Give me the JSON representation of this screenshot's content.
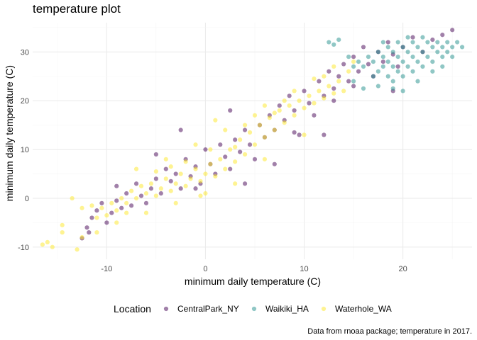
{
  "chart_data": {
    "type": "scatter",
    "title": "temperature plot",
    "xlabel": "minimum daily temperature (C)",
    "ylabel": "minimum daily temperature (C)",
    "caption": "Data from rnoaa package; temperature in 2017.",
    "xlim": [
      -17.5,
      27
    ],
    "ylim": [
      -12.5,
      36
    ],
    "x_ticks": [
      -10,
      0,
      10,
      20
    ],
    "y_ticks": [
      -10,
      0,
      10,
      20,
      30
    ],
    "grid": true,
    "legend": {
      "title": "Location",
      "placement": "bottom",
      "entries": [
        "CentralPark_NY",
        "Waikiki_HA",
        "Waterhole_WA"
      ]
    },
    "point_opacity": 0.5,
    "series": [
      {
        "name": "CentralPark_NY",
        "color": "#440154",
        "points": [
          [
            -12.5,
            -8.2
          ],
          [
            -12,
            -6
          ],
          [
            -11.8,
            -7
          ],
          [
            -11.5,
            -4
          ],
          [
            -11,
            -2.5
          ],
          [
            -10.5,
            -1
          ],
          [
            -10,
            -5
          ],
          [
            -9.5,
            -3
          ],
          [
            -9,
            -0.5
          ],
          [
            -8.5,
            -2
          ],
          [
            -8,
            1
          ],
          [
            -7.5,
            -1.5
          ],
          [
            -7,
            3
          ],
          [
            -6.5,
            0.5
          ],
          [
            -6,
            -1
          ],
          [
            -5.5,
            2
          ],
          [
            -5,
            4
          ],
          [
            -4.5,
            1
          ],
          [
            -4,
            6
          ],
          [
            -3.5,
            3.5
          ],
          [
            -3,
            5
          ],
          [
            -2.5,
            2
          ],
          [
            -2,
            8
          ],
          [
            -1.5,
            4.5
          ],
          [
            -1,
            6.5
          ],
          [
            -0.5,
            3
          ],
          [
            0,
            10
          ],
          [
            0.5,
            7
          ],
          [
            1,
            5
          ],
          [
            1.5,
            11
          ],
          [
            2,
            8.5
          ],
          [
            2.5,
            6
          ],
          [
            3,
            12
          ],
          [
            3.5,
            9.5
          ],
          [
            4,
            14
          ],
          [
            4.5,
            11
          ],
          [
            5,
            8
          ],
          [
            5.5,
            15
          ],
          [
            6,
            12.5
          ],
          [
            6.5,
            17
          ],
          [
            7,
            14
          ],
          [
            7.5,
            19
          ],
          [
            8,
            16
          ],
          [
            8.5,
            21
          ],
          [
            9,
            18
          ],
          [
            9.5,
            13
          ],
          [
            10,
            22
          ],
          [
            10.5,
            19.5
          ],
          [
            11,
            17
          ],
          [
            11.5,
            24
          ],
          [
            12,
            21
          ],
          [
            12.5,
            26
          ],
          [
            13,
            22.5
          ],
          [
            13.5,
            25
          ],
          [
            14,
            27.5
          ],
          [
            14.5,
            24
          ],
          [
            15,
            29
          ],
          [
            15.5,
            26
          ],
          [
            16,
            31
          ],
          [
            16.5,
            27.5
          ],
          [
            17,
            25
          ],
          [
            17.5,
            30
          ],
          [
            18,
            28
          ],
          [
            18.5,
            32
          ],
          [
            19,
            29.5
          ],
          [
            19.5,
            27
          ],
          [
            20,
            31
          ],
          [
            21,
            33
          ],
          [
            22,
            30
          ],
          [
            23,
            32.5
          ],
          [
            24,
            33.5
          ],
          [
            25,
            34.5
          ],
          [
            -2.5,
            14
          ],
          [
            -5,
            9
          ],
          [
            2.5,
            18
          ],
          [
            9,
            13.5
          ],
          [
            12,
            13
          ],
          [
            -9,
            2.5
          ],
          [
            4,
            3
          ],
          [
            -1,
            2
          ],
          [
            7,
            7
          ],
          [
            15,
            23
          ],
          [
            19,
            22
          ],
          [
            13,
            20
          ]
        ]
      },
      {
        "name": "Waikiki_HA",
        "color": "#21908c",
        "points": [
          [
            12.5,
            32
          ],
          [
            13,
            31.5
          ],
          [
            14.5,
            29
          ],
          [
            15,
            27
          ],
          [
            15.5,
            28
          ],
          [
            16,
            27
          ],
          [
            16.5,
            29
          ],
          [
            17,
            25
          ],
          [
            17,
            28
          ],
          [
            17.5,
            26
          ],
          [
            17.5,
            30
          ],
          [
            18,
            27
          ],
          [
            18,
            29
          ],
          [
            18.5,
            25
          ],
          [
            18.5,
            28
          ],
          [
            18.5,
            31
          ],
          [
            19,
            24
          ],
          [
            19,
            27
          ],
          [
            19,
            30
          ],
          [
            19.5,
            26
          ],
          [
            19.5,
            29
          ],
          [
            19.5,
            32
          ],
          [
            20,
            25
          ],
          [
            20,
            28
          ],
          [
            20,
            31
          ],
          [
            20.5,
            27
          ],
          [
            20.5,
            30
          ],
          [
            20.5,
            33
          ],
          [
            21,
            26
          ],
          [
            21,
            29
          ],
          [
            21,
            32
          ],
          [
            21.5,
            28
          ],
          [
            21.5,
            31
          ],
          [
            22,
            27
          ],
          [
            22,
            30
          ],
          [
            22,
            33
          ],
          [
            22.5,
            29
          ],
          [
            22.5,
            32
          ],
          [
            23,
            28
          ],
          [
            23,
            31
          ],
          [
            23.5,
            30
          ],
          [
            23.5,
            32
          ],
          [
            24,
            29
          ],
          [
            24,
            31
          ],
          [
            24.5,
            30
          ],
          [
            24.5,
            32
          ],
          [
            25,
            31
          ],
          [
            25,
            29
          ],
          [
            25.5,
            32
          ],
          [
            26,
            31
          ],
          [
            15,
            24
          ],
          [
            16,
            22.5
          ],
          [
            17.5,
            23
          ],
          [
            20,
            22
          ],
          [
            13.5,
            32.5
          ],
          [
            21.5,
            24
          ],
          [
            18,
            32
          ],
          [
            23,
            26
          ],
          [
            19,
            22.5
          ],
          [
            24,
            27
          ]
        ]
      },
      {
        "name": "Waterhole_WA",
        "color": "#fde725",
        "points": [
          [
            -16.5,
            -9.5
          ],
          [
            -16,
            -9
          ],
          [
            -15.5,
            -10
          ],
          [
            -14.5,
            -7
          ],
          [
            -14.5,
            -5.5
          ],
          [
            -13.5,
            0
          ],
          [
            -13,
            -10.5
          ],
          [
            -12.5,
            -2
          ],
          [
            -11.5,
            -1.5
          ],
          [
            -11,
            -4
          ],
          [
            -10.5,
            -2
          ],
          [
            -10,
            -3.5
          ],
          [
            -9.5,
            -1
          ],
          [
            -9,
            -2.5
          ],
          [
            -8.5,
            0
          ],
          [
            -8,
            -1
          ],
          [
            -7.5,
            1.5
          ],
          [
            -7,
            0
          ],
          [
            -6.5,
            2.5
          ],
          [
            -6,
            1
          ],
          [
            -5.5,
            3
          ],
          [
            -5,
            0.5
          ],
          [
            -4.5,
            2
          ],
          [
            -4,
            4
          ],
          [
            -3.5,
            1.5
          ],
          [
            -3,
            3
          ],
          [
            -2.5,
            5
          ],
          [
            -2,
            2.5
          ],
          [
            -1.5,
            4
          ],
          [
            -1,
            6
          ],
          [
            -0.5,
            3.5
          ],
          [
            0,
            5
          ],
          [
            0.5,
            7
          ],
          [
            1,
            4.5
          ],
          [
            1.5,
            8
          ],
          [
            2,
            6
          ],
          [
            2.5,
            10
          ],
          [
            3,
            7.5
          ],
          [
            3.5,
            12
          ],
          [
            4,
            9
          ],
          [
            4.5,
            13.5
          ],
          [
            5,
            11
          ],
          [
            5.5,
            15
          ],
          [
            6,
            12.5
          ],
          [
            6.5,
            16.5
          ],
          [
            7,
            14
          ],
          [
            7.5,
            18
          ],
          [
            8,
            15.5
          ],
          [
            8.5,
            19
          ],
          [
            9,
            17
          ],
          [
            9.5,
            20
          ],
          [
            10,
            18.5
          ],
          [
            10.5,
            21
          ],
          [
            11,
            19.5
          ],
          [
            11.5,
            22
          ],
          [
            12,
            20.5
          ],
          [
            12.5,
            23
          ],
          [
            13,
            21.5
          ],
          [
            13.5,
            24
          ],
          [
            14,
            22
          ],
          [
            14.5,
            26
          ],
          [
            15,
            28
          ],
          [
            -7,
            6
          ],
          [
            -4,
            8
          ],
          [
            -1,
            11
          ],
          [
            2,
            14
          ],
          [
            5,
            17
          ],
          [
            8,
            20
          ],
          [
            -11,
            -7
          ],
          [
            -9,
            -5
          ],
          [
            -6,
            -3
          ],
          [
            -3,
            -1
          ],
          [
            0,
            1
          ],
          [
            3,
            3
          ],
          [
            6,
            8
          ],
          [
            10,
            13
          ],
          [
            -12.5,
            -8
          ],
          [
            -8,
            -3
          ],
          [
            1,
            16
          ],
          [
            4,
            15
          ],
          [
            7,
            17.5
          ],
          [
            9,
            22
          ],
          [
            11,
            24.5
          ],
          [
            13,
            27
          ],
          [
            -5,
            5.5
          ],
          [
            -2,
            7.5
          ],
          [
            0.5,
            10
          ],
          [
            3,
            10.5
          ],
          [
            -0.5,
            0.5
          ],
          [
            -3.5,
            6.5
          ],
          [
            6,
            19
          ],
          [
            12,
            25
          ]
        ]
      }
    ]
  }
}
